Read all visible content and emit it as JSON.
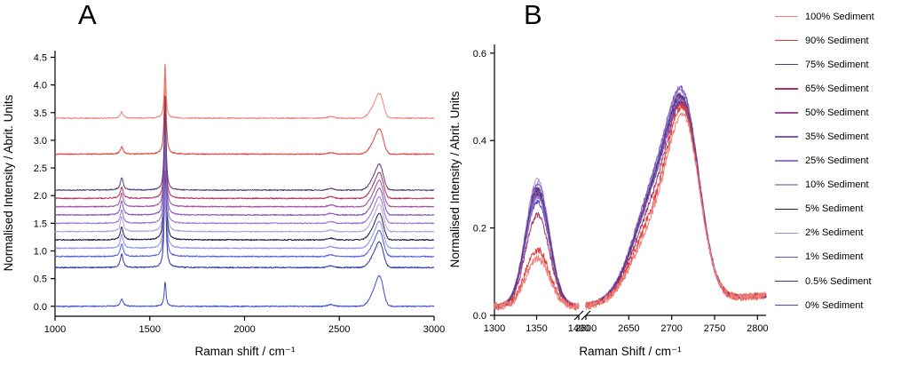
{
  "panels": {
    "a_label": "A",
    "b_label": "B"
  },
  "chart_data": [
    {
      "id": "A",
      "type": "line",
      "title": "",
      "xlabel": "Raman shift / cm⁻¹",
      "ylabel": "Normalised Intensity / Abrit. Units",
      "xlim": [
        1000,
        3000
      ],
      "ylim": [
        -0.18,
        4.62
      ],
      "xticks": [
        1000,
        1500,
        2000,
        2500,
        3000
      ],
      "yticks": [
        "0.0",
        "0.5",
        "1.0",
        "1.5",
        "2.0",
        "2.5",
        "3.0",
        "3.5",
        "4.0",
        "4.5"
      ],
      "grid": false,
      "peak_centers": {
        "d_band": 1352,
        "g_band": 1581,
        "mid_band": 2455,
        "twod_band": 2716
      },
      "series": [
        {
          "name": "100% Sediment",
          "color": "#ef827c",
          "offset": 3.4,
          "d_height": 0.11,
          "g_height": 1.0,
          "twod_height": 0.45
        },
        {
          "name": "90% Sediment",
          "color": "#e0403c",
          "offset": 2.75,
          "d_height": 0.13,
          "g_height": 1.6,
          "twod_height": 0.46
        },
        {
          "name": "75% Sediment",
          "color": "#563d7c",
          "offset": 2.1,
          "d_height": 0.22,
          "g_height": 1.75,
          "twod_height": 0.47
        },
        {
          "name": "65% Sediment",
          "color": "#b03060",
          "offset": 1.95,
          "d_height": 0.2,
          "g_height": 1.85,
          "twod_height": 0.47
        },
        {
          "name": "50% Sediment",
          "color": "#9c4d9e",
          "offset": 1.8,
          "d_height": 0.24,
          "g_height": 1.95,
          "twod_height": 0.48
        },
        {
          "name": "35% Sediment",
          "color": "#7e57c2",
          "offset": 1.65,
          "d_height": 0.25,
          "g_height": 2.05,
          "twod_height": 0.49
        },
        {
          "name": "25% Sediment",
          "color": "#9575cd",
          "offset": 1.5,
          "d_height": 0.24,
          "g_height": 2.15,
          "twod_height": 0.48
        },
        {
          "name": "10% Sediment",
          "color": "#b39ddb",
          "offset": 1.35,
          "d_height": 0.27,
          "g_height": 2.25,
          "twod_height": 0.49
        },
        {
          "name": "5% Sediment",
          "color": "#1d1b4f",
          "offset": 1.2,
          "d_height": 0.24,
          "g_height": 2.35,
          "twod_height": 0.48
        },
        {
          "name": "2% Sediment",
          "color": "#8a8fe8",
          "offset": 1.05,
          "d_height": 0.25,
          "g_height": 2.2,
          "twod_height": 0.48
        },
        {
          "name": "1% Sediment",
          "color": "#5158dd",
          "offset": 0.9,
          "d_height": 0.23,
          "g_height": 2.0,
          "twod_height": 0.47
        },
        {
          "name": "0.5% Sediment",
          "color": "#2f34a8",
          "offset": 0.7,
          "d_height": 0.24,
          "g_height": 1.8,
          "twod_height": 0.47
        },
        {
          "name": "0% Sediment",
          "color": "#3f48cc",
          "offset": 0.0,
          "d_height": 0.13,
          "g_height": 0.45,
          "twod_height": 0.55
        }
      ]
    },
    {
      "id": "B",
      "type": "line",
      "title": "",
      "xlabel": "Raman Shift / cm⁻¹",
      "ylabel": "Normalised Intensity / Abrit. Units",
      "axis_break": true,
      "segments": [
        {
          "xlim": [
            1300,
            1400
          ],
          "xticks": [
            1300,
            1350,
            1400
          ]
        },
        {
          "xlim": [
            2600,
            2810
          ],
          "xticks": [
            2600,
            2650,
            2700,
            2750,
            2800
          ]
        }
      ],
      "ylim": [
        0,
        0.62
      ],
      "yticks": [
        "0.0",
        "0.2",
        "0.4",
        "0.6"
      ],
      "grid": false,
      "legend_position": "right-outside",
      "peak_centers": {
        "d_band": 1351,
        "twod_band": 2716
      },
      "series": [
        {
          "name": "100% Sediment",
          "color": "#ef827c",
          "d_height": 0.13,
          "twod_height": 0.455,
          "shoulder": 0.42,
          "noise": 0.009
        },
        {
          "name": "90% Sediment",
          "color": "#e0403c",
          "d_height": 0.15,
          "twod_height": 0.47,
          "shoulder": 0.45,
          "noise": 0.009
        },
        {
          "name": "75% Sediment",
          "color": "#563d7c",
          "d_height": 0.29,
          "twod_height": 0.49,
          "shoulder": 0.6,
          "noise": 0.005
        },
        {
          "name": "65% Sediment",
          "color": "#b03060",
          "d_height": 0.23,
          "twod_height": 0.475,
          "shoulder": 0.52,
          "noise": 0.006
        },
        {
          "name": "50% Sediment",
          "color": "#9c4d9e",
          "d_height": 0.28,
          "twod_height": 0.485,
          "shoulder": 0.58,
          "noise": 0.005
        },
        {
          "name": "35% Sediment",
          "color": "#7e57c2",
          "d_height": 0.3,
          "twod_height": 0.505,
          "shoulder": 0.62,
          "noise": 0.005
        },
        {
          "name": "25% Sediment",
          "color": "#9575cd",
          "d_height": 0.27,
          "twod_height": 0.5,
          "shoulder": 0.6,
          "noise": 0.005
        },
        {
          "name": "10% Sediment",
          "color": "#b39ddb",
          "d_height": 0.31,
          "twod_height": 0.49,
          "shoulder": 0.62,
          "noise": 0.005
        },
        {
          "name": "5% Sediment",
          "color": "#1d1b4f",
          "d_height": 0.28,
          "twod_height": 0.485,
          "shoulder": 0.6,
          "noise": 0.005
        },
        {
          "name": "2% Sediment",
          "color": "#8a8fe8",
          "d_height": 0.29,
          "twod_height": 0.48,
          "shoulder": 0.61,
          "noise": 0.005
        },
        {
          "name": "1% Sediment",
          "color": "#5158dd",
          "d_height": 0.26,
          "twod_height": 0.47,
          "shoulder": 0.6,
          "noise": 0.005
        },
        {
          "name": "0.5% Sediment",
          "color": "#2f34a8",
          "d_height": 0.285,
          "twod_height": 0.475,
          "shoulder": 0.6,
          "noise": 0.005
        },
        {
          "name": "0% Sediment",
          "color": "#3f48cc",
          "d_height": 0.275,
          "twod_height": 0.47,
          "shoulder": 0.63,
          "noise": 0.005
        }
      ]
    }
  ]
}
